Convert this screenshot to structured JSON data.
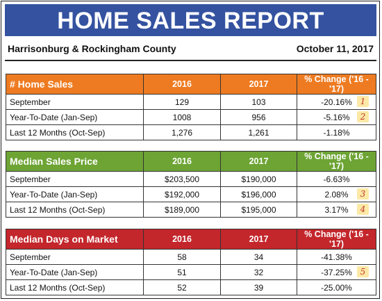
{
  "header": {
    "title": "HOME SALES REPORT",
    "region": "Harrisonburg & Rockingham County",
    "date": "October 11, 2017"
  },
  "colors": {
    "banner": "#3452a0",
    "home_sales": "#ee7b21",
    "median_price": "#6da434",
    "days_on_market": "#c3262b"
  },
  "sections": [
    {
      "title": "# Home Sales",
      "columns": [
        "2016",
        "2017",
        "% Change ('16 - '17)"
      ],
      "rows": [
        {
          "label": "September",
          "v2016": "129",
          "v2017": "103",
          "change": "-20.16%",
          "note": "1"
        },
        {
          "label": "Year-To-Date (Jan-Sep)",
          "v2016": "1008",
          "v2017": "956",
          "change": "-5.16%",
          "note": "2"
        },
        {
          "label": "Last 12 Months (Oct-Sep)",
          "v2016": "1,276",
          "v2017": "1,261",
          "change": "-1.18%",
          "note": ""
        }
      ]
    },
    {
      "title": "Median Sales Price",
      "columns": [
        "2016",
        "2017",
        "% Change ('16 - '17)"
      ],
      "rows": [
        {
          "label": "September",
          "v2016": "$203,500",
          "v2017": "$190,000",
          "change": "-6.63%",
          "note": ""
        },
        {
          "label": "Year-To-Date (Jan-Sep)",
          "v2016": "$192,000",
          "v2017": "$196,000",
          "change": "2.08%",
          "note": "3"
        },
        {
          "label": "Last 12 Months (Oct-Sep)",
          "v2016": "$189,000",
          "v2017": "$195,000",
          "change": "3.17%",
          "note": "4"
        }
      ]
    },
    {
      "title": "Median Days on Market",
      "columns": [
        "2016",
        "2017",
        "% Change ('16 - '17)"
      ],
      "rows": [
        {
          "label": "September",
          "v2016": "58",
          "v2017": "34",
          "change": "-41.38%",
          "note": ""
        },
        {
          "label": "Year-To-Date (Jan-Sep)",
          "v2016": "51",
          "v2017": "32",
          "change": "-37.25%",
          "note": "5"
        },
        {
          "label": "Last 12 Months (Oct-Sep)",
          "v2016": "52",
          "v2017": "39",
          "change": "-25.00%",
          "note": ""
        }
      ]
    }
  ]
}
